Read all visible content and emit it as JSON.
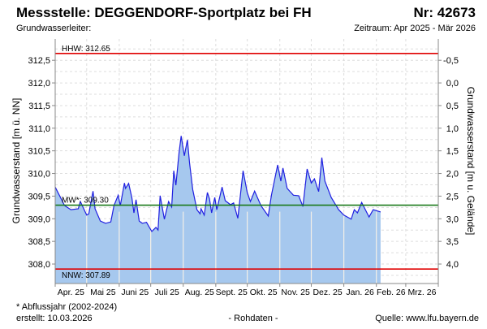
{
  "header": {
    "title": "Messstelle: DEGGENDORF-Sportplatz bei FH",
    "number": "Nr: 42673",
    "aquifer": "Grundwasserleiter:",
    "period": "Zeitraum: Apr 2025 - Mär 2026"
  },
  "footer": {
    "note": "* Abflussjahr (2002-2024)",
    "created": "erstellt:  10.03.2026",
    "raw": "- Rohdaten -",
    "source": "Quelle: www.lfu.bayern.de"
  },
  "colors": {
    "line": "#1f1fe0",
    "fill": "#a6c8ee",
    "hhw": "#e00000",
    "nnw": "#e00000",
    "mw": "#1a7a1a",
    "source": "#0000ee"
  },
  "chart_data": {
    "type": "area",
    "title": "Messstelle: DEGGENDORF-Sportplatz bei FH",
    "ylabel": "Grundwasserstand [m ü. NN]",
    "ylabel_right": "Grundwasserstand [m u. Gelände]",
    "ylim": [
      307.57,
      312.97
    ],
    "ground_level": 312.0,
    "yticks_left": [
      "308,0",
      "308,5",
      "309,0",
      "309,5",
      "310,0",
      "310,5",
      "311,0",
      "311,5",
      "312,0",
      "312,5"
    ],
    "yticks_right": [
      "4,0",
      "3,5",
      "3,0",
      "2,5",
      "2,0",
      "1,5",
      "1,0",
      "0,5",
      "0,0",
      "-0,5"
    ],
    "x_unit": "days since 2025-04-01",
    "xlim": [
      0,
      365
    ],
    "months": [
      {
        "label": "Apr. 25",
        "day": 0
      },
      {
        "label": "Mai 25",
        "day": 30
      },
      {
        "label": "Juni 25",
        "day": 61
      },
      {
        "label": "Juli 25",
        "day": 91
      },
      {
        "label": "Aug. 25",
        "day": 122
      },
      {
        "label": "Sept. 25",
        "day": 153
      },
      {
        "label": "Okt. 25",
        "day": 183
      },
      {
        "label": "Nov. 25",
        "day": 214
      },
      {
        "label": "Dez. 25",
        "day": 244
      },
      {
        "label": "Jan. 26",
        "day": 275
      },
      {
        "label": "Feb. 26",
        "day": 306
      },
      {
        "label": "Mrz. 26",
        "day": 334
      }
    ],
    "month_end": 365,
    "reference_lines": [
      {
        "name": "HHW",
        "label": "HHW: 312.65",
        "value": 312.65
      },
      {
        "name": "MW",
        "label": "MW*: 309.30",
        "value": 309.3
      },
      {
        "name": "NNW",
        "label": "NNW: 307.89",
        "value": 307.89
      }
    ],
    "series": [
      {
        "name": "Grundwasserstand",
        "points": [
          [
            0,
            309.7
          ],
          [
            9,
            309.29
          ],
          [
            15,
            309.2
          ],
          [
            22,
            309.22
          ],
          [
            24,
            309.38
          ],
          [
            30,
            309.08
          ],
          [
            32,
            309.11
          ],
          [
            36,
            309.61
          ],
          [
            38,
            309.22
          ],
          [
            43,
            308.95
          ],
          [
            48,
            308.9
          ],
          [
            53,
            308.93
          ],
          [
            56,
            309.29
          ],
          [
            60,
            309.52
          ],
          [
            62,
            309.29
          ],
          [
            66,
            309.79
          ],
          [
            67,
            309.67
          ],
          [
            70,
            309.78
          ],
          [
            73,
            309.47
          ],
          [
            75,
            309.13
          ],
          [
            77,
            309.42
          ],
          [
            80,
            308.95
          ],
          [
            83,
            308.9
          ],
          [
            87,
            308.92
          ],
          [
            92,
            308.72
          ],
          [
            96,
            308.81
          ],
          [
            98,
            308.75
          ],
          [
            100,
            309.51
          ],
          [
            104,
            308.99
          ],
          [
            108,
            309.38
          ],
          [
            111,
            309.26
          ],
          [
            113,
            310.06
          ],
          [
            115,
            309.74
          ],
          [
            118,
            310.46
          ],
          [
            120,
            310.83
          ],
          [
            123,
            310.39
          ],
          [
            126,
            310.74
          ],
          [
            128,
            310.24
          ],
          [
            131,
            309.65
          ],
          [
            135,
            309.2
          ],
          [
            138,
            309.11
          ],
          [
            139,
            309.22
          ],
          [
            142,
            309.08
          ],
          [
            145,
            309.58
          ],
          [
            147,
            309.44
          ],
          [
            149,
            309.13
          ],
          [
            152,
            309.47
          ],
          [
            154,
            309.2
          ],
          [
            159,
            309.7
          ],
          [
            162,
            309.4
          ],
          [
            167,
            309.31
          ],
          [
            170,
            309.35
          ],
          [
            174,
            309.01
          ],
          [
            179,
            310.06
          ],
          [
            183,
            309.58
          ],
          [
            186,
            309.38
          ],
          [
            190,
            309.61
          ],
          [
            196,
            309.29
          ],
          [
            203,
            309.06
          ],
          [
            206,
            309.52
          ],
          [
            212,
            310.19
          ],
          [
            215,
            309.83
          ],
          [
            217,
            310.12
          ],
          [
            221,
            309.67
          ],
          [
            227,
            309.52
          ],
          [
            232,
            309.51
          ],
          [
            236,
            309.27
          ],
          [
            240,
            310.1
          ],
          [
            244,
            309.79
          ],
          [
            247,
            309.88
          ],
          [
            251,
            309.6
          ],
          [
            254,
            310.35
          ],
          [
            257,
            309.83
          ],
          [
            263,
            309.47
          ],
          [
            270,
            309.2
          ],
          [
            275,
            309.08
          ],
          [
            282,
            308.99
          ],
          [
            285,
            309.2
          ],
          [
            288,
            309.13
          ],
          [
            292,
            309.36
          ],
          [
            299,
            309.04
          ],
          [
            303,
            309.2
          ],
          [
            310,
            309.15
          ]
        ]
      }
    ]
  }
}
